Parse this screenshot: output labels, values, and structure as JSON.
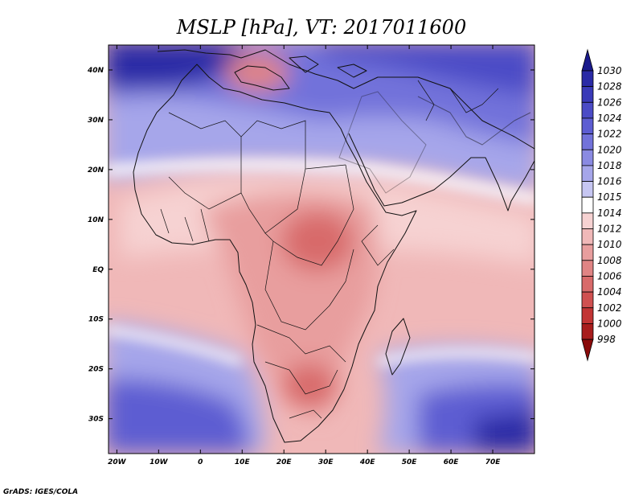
{
  "title": "MSLP [hPa], VT: 2017011600",
  "credit": "GrADS: IGES/COLA",
  "map": {
    "lon_range": [
      -22,
      80
    ],
    "lat_range": [
      -37,
      45
    ],
    "x_ticks": [
      {
        "lon": -20,
        "label": "20W"
      },
      {
        "lon": -10,
        "label": "10W"
      },
      {
        "lon": 0,
        "label": "0"
      },
      {
        "lon": 10,
        "label": "10E"
      },
      {
        "lon": 20,
        "label": "20E"
      },
      {
        "lon": 30,
        "label": "30E"
      },
      {
        "lon": 40,
        "label": "40E"
      },
      {
        "lon": 50,
        "label": "50E"
      },
      {
        "lon": 60,
        "label": "60E"
      },
      {
        "lon": 70,
        "label": "70E"
      }
    ],
    "y_ticks": [
      {
        "lat": 40,
        "label": "40N"
      },
      {
        "lat": 30,
        "label": "30N"
      },
      {
        "lat": 20,
        "label": "20N"
      },
      {
        "lat": 10,
        "label": "10N"
      },
      {
        "lat": 0,
        "label": "EQ"
      },
      {
        "lat": -10,
        "label": "10S"
      },
      {
        "lat": -20,
        "label": "20S"
      },
      {
        "lat": -30,
        "label": "30S"
      }
    ]
  },
  "colorbar": {
    "levels": [
      "1030",
      "1028",
      "1026",
      "1024",
      "1022",
      "1020",
      "1018",
      "1016",
      "1015",
      "1014",
      "1012",
      "1010",
      "1008",
      "1006",
      "1004",
      "1002",
      "1000",
      "998"
    ],
    "colors": [
      "#1a1a8c",
      "#2a2aa6",
      "#3a3ab8",
      "#4b4bc6",
      "#5d5dd2",
      "#7272da",
      "#8a8ae2",
      "#a6a6ea",
      "#c6c6f2",
      "#ffffff",
      "#f6d2d2",
      "#f0b8b8",
      "#e89e9e",
      "#e08484",
      "#d86a6a",
      "#d05050",
      "#c23434",
      "#a81c1c",
      "#8a0a0a"
    ]
  }
}
